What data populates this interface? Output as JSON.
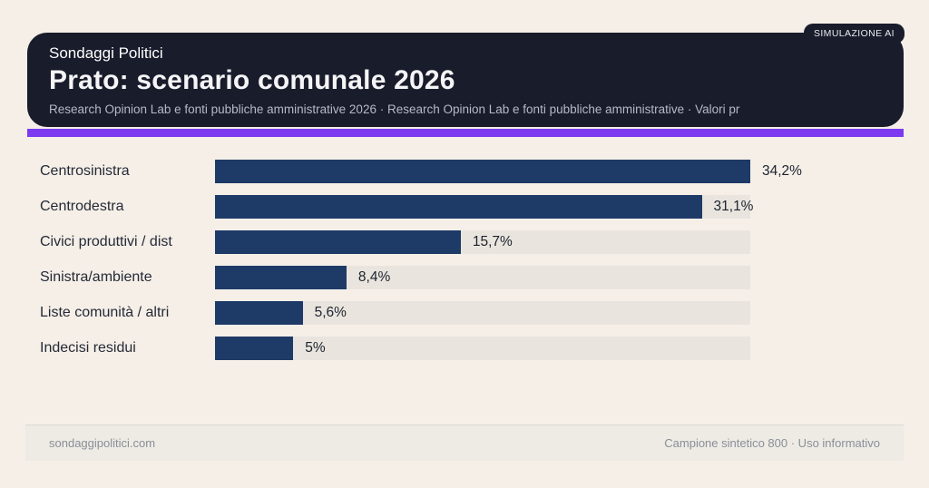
{
  "badge": "SIMULAZIONE AI",
  "header": {
    "kicker": "Sondaggi Politici",
    "title": "Prato: scenario comunale 2026",
    "subtitle": "Research Opinion Lab e fonti pubbliche amministrative 2026 · Research Opinion Lab e fonti pubbliche amministrative · Valori pr"
  },
  "chart_data": {
    "type": "bar",
    "orientation": "horizontal",
    "title": "Prato: scenario comunale 2026",
    "categories": [
      "Centrosinistra",
      "Centrodestra",
      "Civici produttivi / dist",
      "Sinistra/ambiente",
      "Liste comunità / altri",
      "Indecisi residui"
    ],
    "values": [
      34.2,
      31.1,
      15.7,
      8.4,
      5.6,
      5.0
    ],
    "value_labels": [
      "34,2%",
      "31,1%",
      "15,7%",
      "8,4%",
      "5,6%",
      "5%"
    ],
    "xlim": [
      0,
      34.2
    ],
    "grid": false,
    "legend": false,
    "bar_color": "#1e3a67",
    "track_color": "#e9e5de"
  },
  "footer": {
    "left": "sondaggipolitici.com",
    "right": "Campione sintetico 800 · Uso informativo"
  },
  "colors": {
    "background": "#f5efe8",
    "header_bg": "#191c2b",
    "accent": "#7c3bf0",
    "bar": "#1e3a67",
    "track": "#e9e5de",
    "footer_bg": "#edebe4"
  }
}
